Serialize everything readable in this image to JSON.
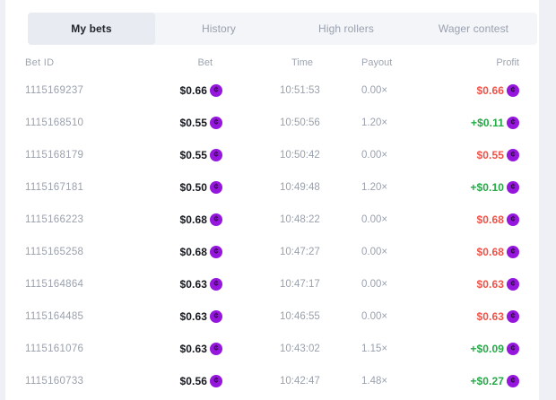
{
  "colors": {
    "coin_purple": "#9516dc",
    "loss_red": "#ef5248",
    "win_green": "#25a946",
    "active_tab_bg": "#e9ebf2",
    "tabbar_bg": "#f4f5f9"
  },
  "coin_symbol": "¢",
  "tabs": [
    {
      "label": "My bets",
      "active": true
    },
    {
      "label": "History",
      "active": false
    },
    {
      "label": "High rollers",
      "active": false
    },
    {
      "label": "Wager contest",
      "active": false
    }
  ],
  "table": {
    "headers": {
      "bet_id": "Bet ID",
      "bet": "Bet",
      "time": "Time",
      "payout": "Payout",
      "profit": "Profit"
    },
    "rows": [
      {
        "bet_id": "1115169237",
        "bet": "$0.66",
        "time": "10:51:53",
        "payout": "0.00×",
        "profit": "$0.66",
        "profit_class": "loss"
      },
      {
        "bet_id": "1115168510",
        "bet": "$0.55",
        "time": "10:50:56",
        "payout": "1.20×",
        "profit": "+$0.11",
        "profit_class": "win"
      },
      {
        "bet_id": "1115168179",
        "bet": "$0.55",
        "time": "10:50:42",
        "payout": "0.00×",
        "profit": "$0.55",
        "profit_class": "loss"
      },
      {
        "bet_id": "1115167181",
        "bet": "$0.50",
        "time": "10:49:48",
        "payout": "1.20×",
        "profit": "+$0.10",
        "profit_class": "win"
      },
      {
        "bet_id": "1115166223",
        "bet": "$0.68",
        "time": "10:48:22",
        "payout": "0.00×",
        "profit": "$0.68",
        "profit_class": "loss"
      },
      {
        "bet_id": "1115165258",
        "bet": "$0.68",
        "time": "10:47:27",
        "payout": "0.00×",
        "profit": "$0.68",
        "profit_class": "loss"
      },
      {
        "bet_id": "1115164864",
        "bet": "$0.63",
        "time": "10:47:17",
        "payout": "0.00×",
        "profit": "$0.63",
        "profit_class": "loss"
      },
      {
        "bet_id": "1115164485",
        "bet": "$0.63",
        "time": "10:46:55",
        "payout": "0.00×",
        "profit": "$0.63",
        "profit_class": "loss"
      },
      {
        "bet_id": "1115161076",
        "bet": "$0.63",
        "time": "10:43:02",
        "payout": "1.15×",
        "profit": "+$0.09",
        "profit_class": "win"
      },
      {
        "bet_id": "1115160733",
        "bet": "$0.56",
        "time": "10:42:47",
        "payout": "1.48×",
        "profit": "+$0.27",
        "profit_class": "win"
      }
    ]
  }
}
